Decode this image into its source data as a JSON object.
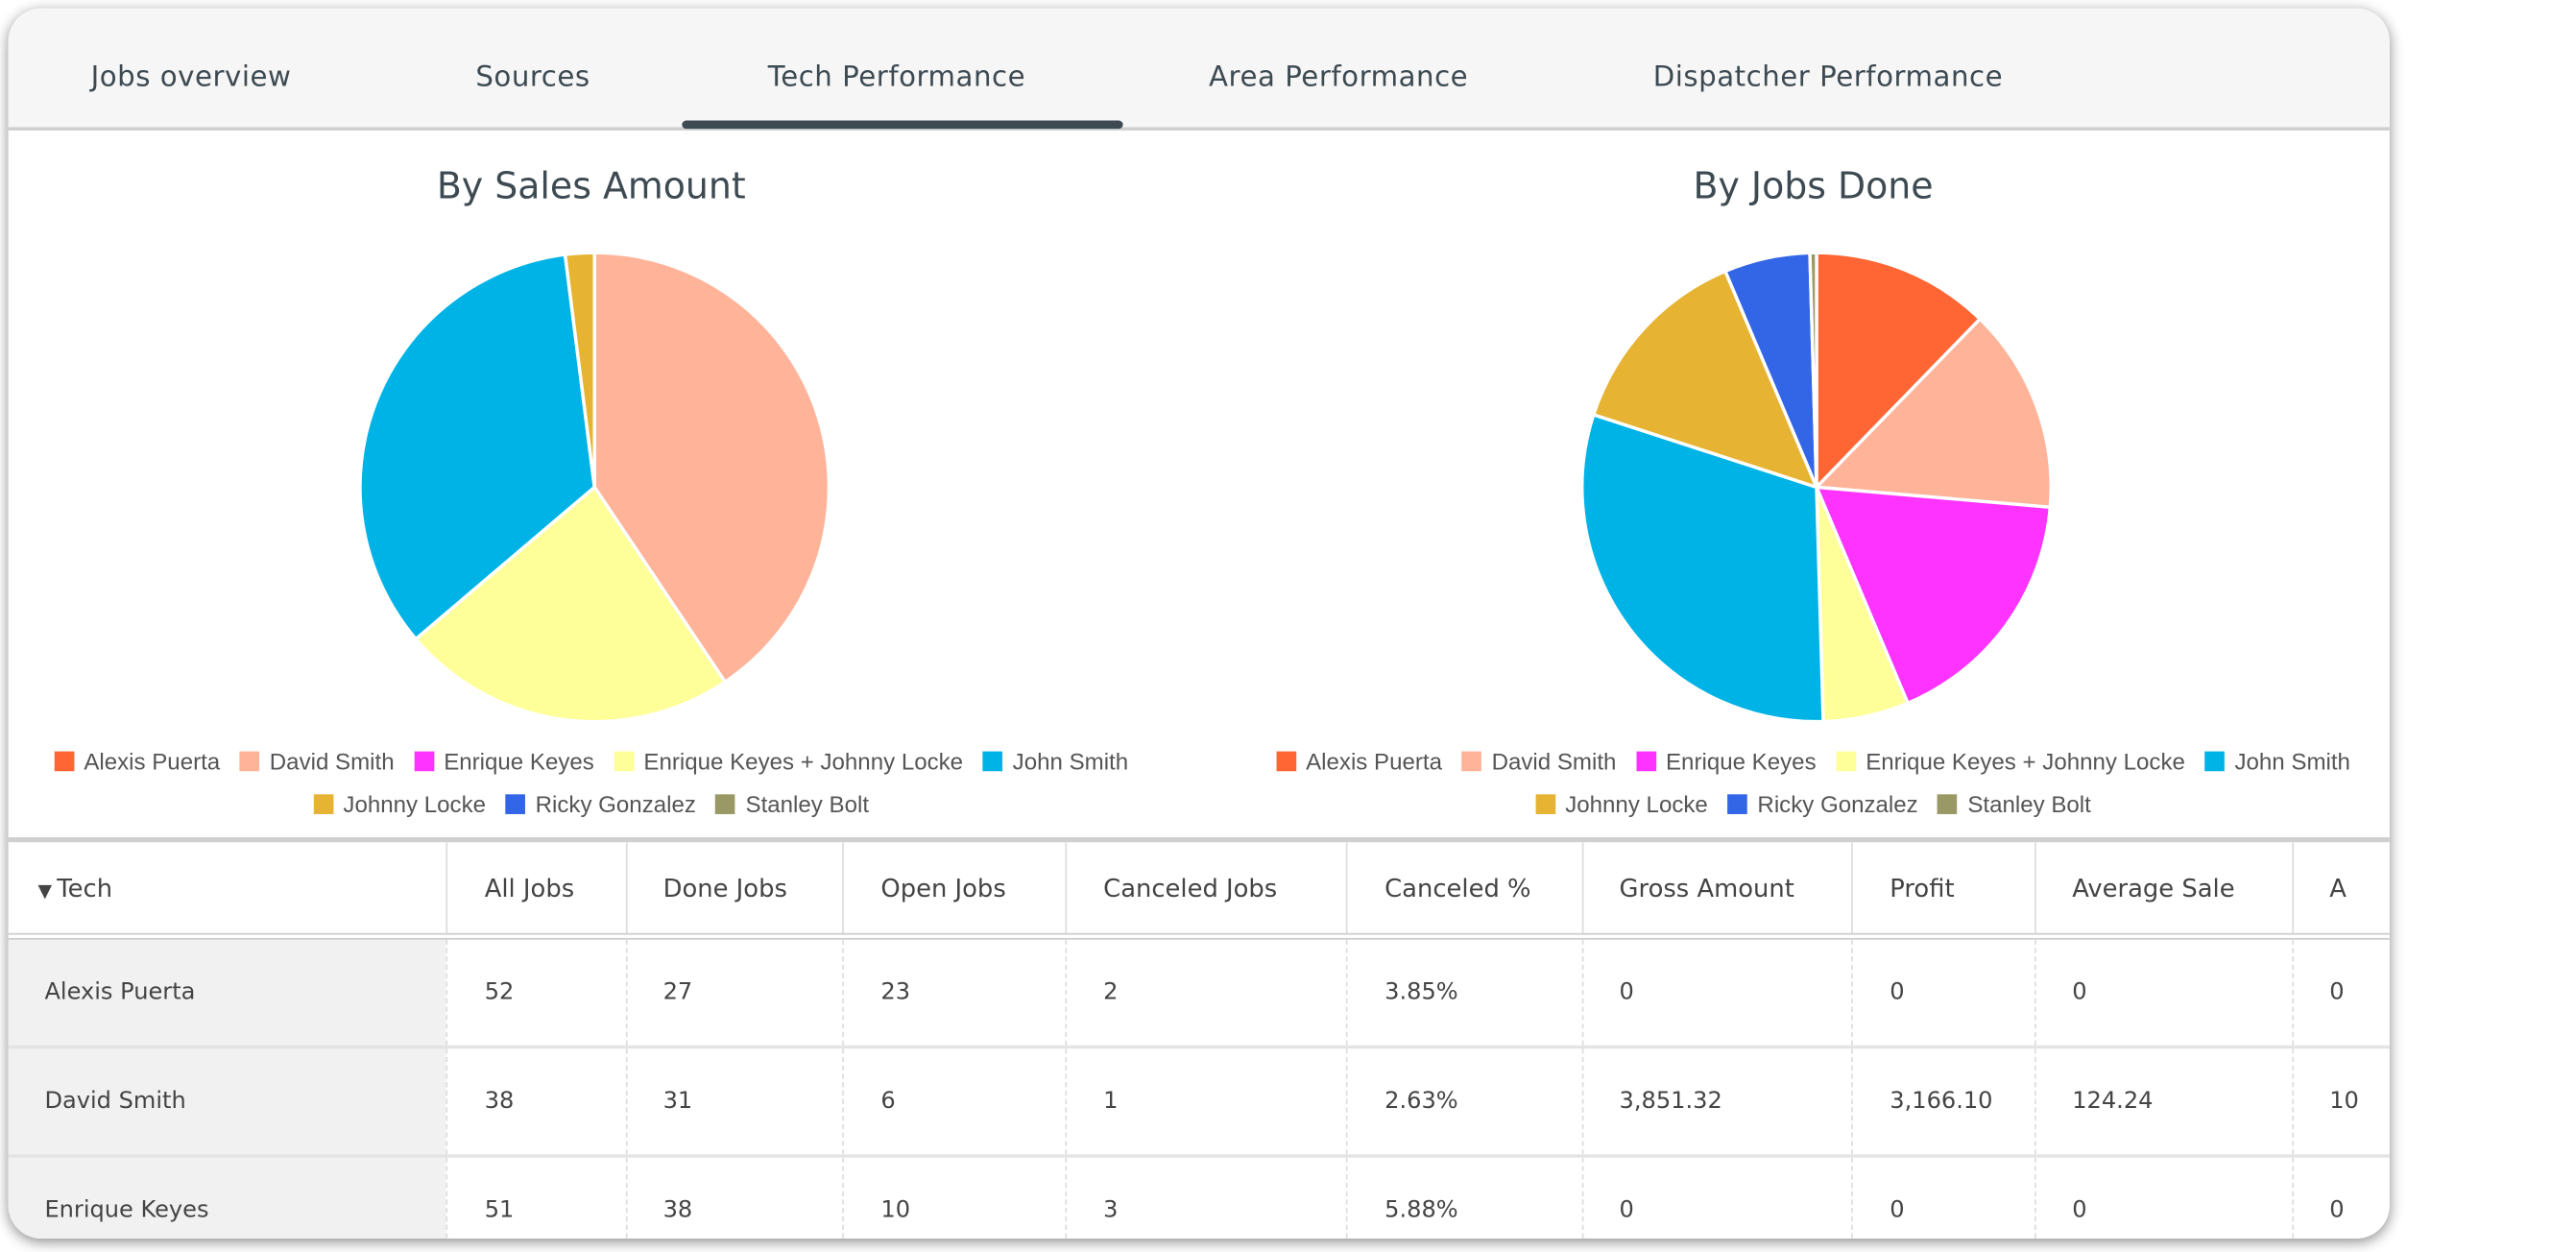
{
  "tabs": [
    {
      "label": "Jobs overview",
      "active": false
    },
    {
      "label": "Sources",
      "active": false
    },
    {
      "label": "Tech Performance",
      "active": true
    },
    {
      "label": "Area Performance",
      "active": false
    },
    {
      "label": "Dispatcher Performance",
      "active": false
    }
  ],
  "legend": [
    {
      "name": "Alexis Puerta",
      "color": "#FF6633"
    },
    {
      "name": "David Smith",
      "color": "#FFB399"
    },
    {
      "name": "Enrique Keyes",
      "color": "#FF33FF"
    },
    {
      "name": "Enrique Keyes + Johnny Locke",
      "color": "#FFFF99"
    },
    {
      "name": "John Smith",
      "color": "#00B3E6"
    },
    {
      "name": "Johnny Locke",
      "color": "#E6B333"
    },
    {
      "name": "Ricky Gonzalez",
      "color": "#3366E6"
    },
    {
      "name": "Stanley Bolt",
      "color": "#999966"
    }
  ],
  "chart_data": [
    {
      "type": "pie",
      "title": "By Sales Amount",
      "labels": [
        "Alexis Puerta",
        "David Smith",
        "Enrique Keyes",
        "Enrique Keyes + Johnny Locke",
        "John Smith",
        "Johnny Locke",
        "Ricky Gonzalez",
        "Stanley Bolt"
      ],
      "values": [
        0,
        3851.32,
        0,
        2200,
        3245,
        190,
        0,
        0
      ]
    },
    {
      "type": "pie",
      "title": "By Jobs Done",
      "labels": [
        "Alexis Puerta",
        "David Smith",
        "Enrique Keyes",
        "Enrique Keyes + Johnny Locke",
        "John Smith",
        "Johnny Locke",
        "Ricky Gonzalez",
        "Stanley Bolt"
      ],
      "values": [
        27,
        31,
        38,
        13,
        67,
        30,
        13,
        1
      ]
    }
  ],
  "table": {
    "sort_icon": "▼",
    "columns": [
      "Tech",
      "All Jobs",
      "Done Jobs",
      "Open Jobs",
      "Canceled Jobs",
      "Canceled %",
      "Gross Amount",
      "Profit",
      "Average Sale",
      "A"
    ],
    "rows": [
      [
        "Alexis Puerta",
        "52",
        "27",
        "23",
        "2",
        "3.85%",
        "0",
        "0",
        "0",
        "0"
      ],
      [
        "David Smith",
        "38",
        "31",
        "6",
        "1",
        "2.63%",
        "3,851.32",
        "3,166.10",
        "124.24",
        "10"
      ],
      [
        "Enrique Keyes",
        "51",
        "38",
        "10",
        "3",
        "5.88%",
        "0",
        "0",
        "0",
        "0"
      ]
    ]
  }
}
